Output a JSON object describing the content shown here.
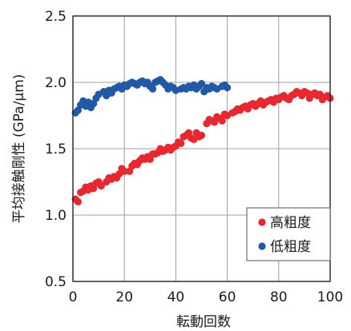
{
  "chart_data": {
    "type": "scatter",
    "title": "",
    "xlabel": "転動回数",
    "ylabel": "平均接触剛性 (GPa/μm)",
    "xlim": [
      0,
      100
    ],
    "ylim": [
      0.5,
      2.5
    ],
    "x_ticks": [
      "0",
      "20",
      "40",
      "60",
      "80",
      "100"
    ],
    "y_ticks": [
      "0.5",
      "1.0",
      "1.5",
      "2.0",
      "2.5"
    ],
    "grid": true,
    "legend": "bottom-right",
    "colors": {
      "high": "#e8282e",
      "low": "#2158a8",
      "grid": "#a0a0a0",
      "axis": "#222222"
    },
    "series": [
      {
        "name": "高粗度",
        "color": "#e8282e",
        "points": [
          [
            1,
            1.12
          ],
          [
            2,
            1.1
          ],
          [
            3,
            1.17
          ],
          [
            4,
            1.18
          ],
          [
            5,
            1.21
          ],
          [
            6,
            1.19
          ],
          [
            7,
            1.22
          ],
          [
            8,
            1.2
          ],
          [
            9,
            1.24
          ],
          [
            10,
            1.25
          ],
          [
            11,
            1.22
          ],
          [
            13,
            1.25
          ],
          [
            14,
            1.28
          ],
          [
            15,
            1.27
          ],
          [
            16,
            1.29
          ],
          [
            17,
            1.28
          ],
          [
            18,
            1.31
          ],
          [
            19,
            1.35
          ],
          [
            20,
            1.33
          ],
          [
            22,
            1.33
          ],
          [
            23,
            1.37
          ],
          [
            24,
            1.39
          ],
          [
            25,
            1.38
          ],
          [
            26,
            1.41
          ],
          [
            27,
            1.43
          ],
          [
            28,
            1.42
          ],
          [
            29,
            1.44
          ],
          [
            30,
            1.42
          ],
          [
            31,
            1.46
          ],
          [
            32,
            1.46
          ],
          [
            33,
            1.47
          ],
          [
            34,
            1.5
          ],
          [
            35,
            1.48
          ],
          [
            36,
            1.49
          ],
          [
            37,
            1.51
          ],
          [
            38,
            1.49
          ],
          [
            39,
            1.51
          ],
          [
            40,
            1.52
          ],
          [
            41,
            1.55
          ],
          [
            42,
            1.54
          ],
          [
            43,
            1.59
          ],
          [
            44,
            1.6
          ],
          [
            45,
            1.62
          ],
          [
            46,
            1.58
          ],
          [
            47,
            1.57
          ],
          [
            48,
            1.62
          ],
          [
            49,
            1.59
          ],
          [
            50,
            1.6
          ],
          [
            52,
            1.69
          ],
          [
            53,
            1.72
          ],
          [
            54,
            1.71
          ],
          [
            55,
            1.7
          ],
          [
            56,
            1.74
          ],
          [
            57,
            1.73
          ],
          [
            58,
            1.71
          ],
          [
            59,
            1.76
          ],
          [
            60,
            1.75
          ],
          [
            62,
            1.77
          ],
          [
            63,
            1.78
          ],
          [
            64,
            1.8
          ],
          [
            65,
            1.79
          ],
          [
            66,
            1.81
          ],
          [
            67,
            1.82
          ],
          [
            68,
            1.8
          ],
          [
            69,
            1.83
          ],
          [
            70,
            1.84
          ],
          [
            71,
            1.82
          ],
          [
            72,
            1.84
          ],
          [
            73,
            1.86
          ],
          [
            74,
            1.83
          ],
          [
            75,
            1.85
          ],
          [
            76,
            1.86
          ],
          [
            77,
            1.87
          ],
          [
            78,
            1.85
          ],
          [
            79,
            1.88
          ],
          [
            80,
            1.87
          ],
          [
            81,
            1.89
          ],
          [
            82,
            1.9
          ],
          [
            83,
            1.88
          ],
          [
            84,
            1.87
          ],
          [
            85,
            1.9
          ],
          [
            86,
            1.91
          ],
          [
            87,
            1.93
          ],
          [
            88,
            1.92
          ],
          [
            89,
            1.9
          ],
          [
            90,
            1.93
          ],
          [
            91,
            1.92
          ],
          [
            92,
            1.88
          ],
          [
            93,
            1.91
          ],
          [
            94,
            1.92
          ],
          [
            95,
            1.9
          ],
          [
            96,
            1.91
          ],
          [
            97,
            1.87
          ],
          [
            98,
            1.89
          ],
          [
            99,
            1.9
          ],
          [
            100,
            1.88
          ]
        ]
      },
      {
        "name": "低粗度",
        "color": "#2158a8",
        "points": [
          [
            1,
            1.77
          ],
          [
            2,
            1.79
          ],
          [
            3,
            1.83
          ],
          [
            4,
            1.86
          ],
          [
            5,
            1.82
          ],
          [
            6,
            1.85
          ],
          [
            7,
            1.81
          ],
          [
            8,
            1.84
          ],
          [
            9,
            1.88
          ],
          [
            10,
            1.91
          ],
          [
            12,
            1.93
          ],
          [
            13,
            1.9
          ],
          [
            14,
            1.94
          ],
          [
            15,
            1.92
          ],
          [
            16,
            1.95
          ],
          [
            17,
            1.96
          ],
          [
            18,
            1.97
          ],
          [
            19,
            1.95
          ],
          [
            20,
            1.98
          ],
          [
            21,
            1.97
          ],
          [
            22,
            1.99
          ],
          [
            23,
            2.0
          ],
          [
            24,
            1.99
          ],
          [
            25,
            1.98
          ],
          [
            26,
            2.0
          ],
          [
            27,
            2.01
          ],
          [
            28,
            1.99
          ],
          [
            29,
            2.0
          ],
          [
            30,
            1.97
          ],
          [
            31,
            1.95
          ],
          [
            32,
            2.0
          ],
          [
            33,
            2.01
          ],
          [
            34,
            2.02
          ],
          [
            35,
            2.0
          ],
          [
            36,
            1.98
          ],
          [
            37,
            1.95
          ],
          [
            38,
            1.97
          ],
          [
            39,
            1.96
          ],
          [
            40,
            1.94
          ],
          [
            42,
            1.95
          ],
          [
            43,
            1.96
          ],
          [
            44,
            1.95
          ],
          [
            45,
            1.97
          ],
          [
            46,
            1.96
          ],
          [
            47,
            1.98
          ],
          [
            48,
            1.95
          ],
          [
            49,
            1.97
          ],
          [
            50,
            1.99
          ],
          [
            51,
            1.93
          ],
          [
            52,
            1.96
          ],
          [
            53,
            1.95
          ],
          [
            54,
            1.97
          ],
          [
            55,
            1.96
          ],
          [
            56,
            1.95
          ],
          [
            58,
            1.97
          ],
          [
            59,
            1.98
          ],
          [
            60,
            1.96
          ]
        ]
      }
    ]
  }
}
